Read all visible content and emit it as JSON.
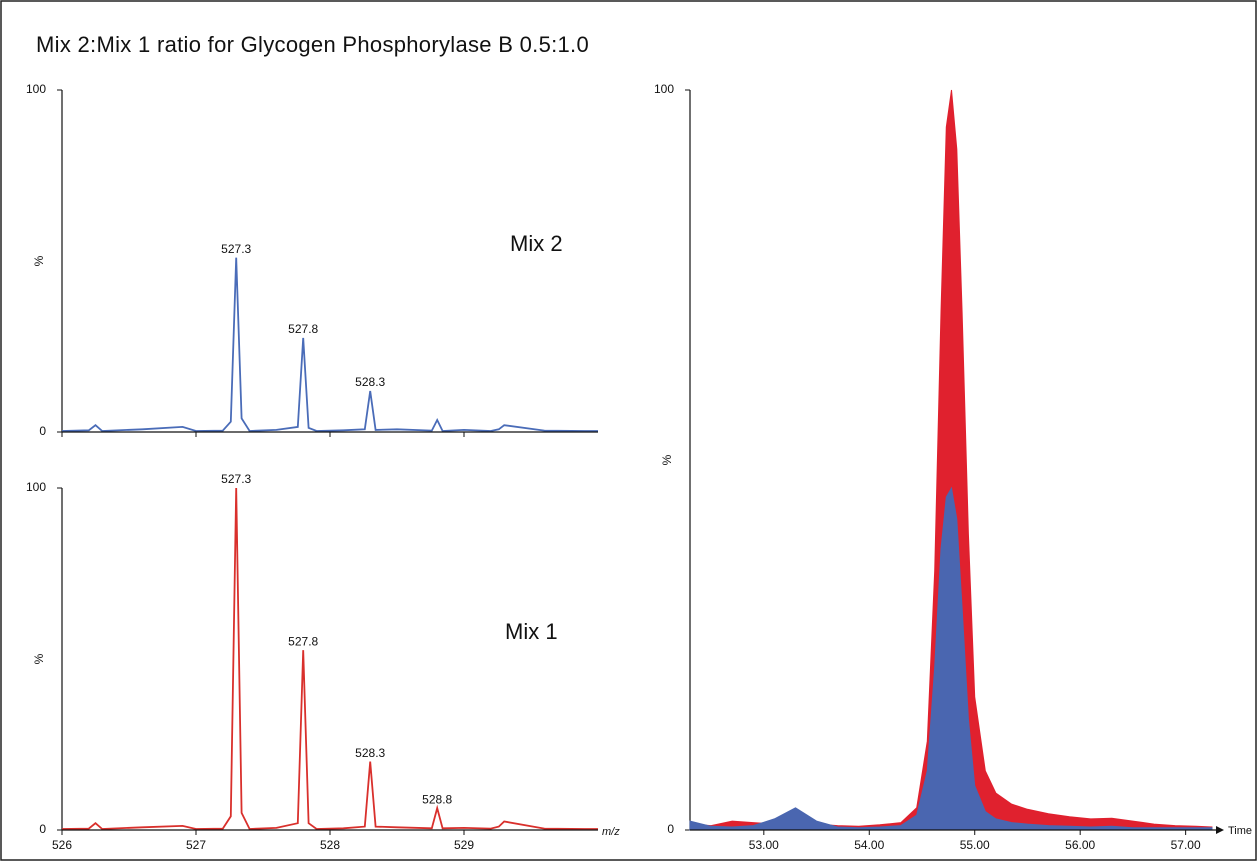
{
  "title": "Mix 2:Mix 1 ratio for Glycogen Phosphorylase B 0.5:1.0",
  "chart_data": [
    {
      "type": "line",
      "ylabel": "%",
      "label_color": "#3a8db5",
      "xlim": [
        526,
        530
      ],
      "xticks": [
        526,
        527,
        528,
        529
      ],
      "xtick_labels": false,
      "ylim": [
        0,
        100
      ],
      "yticks": [
        0,
        100
      ],
      "x": [
        526.0,
        526.2,
        526.25,
        526.3,
        526.6,
        526.9,
        527.0,
        527.2,
        527.26,
        527.3,
        527.34,
        527.4,
        527.6,
        527.76,
        527.8,
        527.84,
        527.9,
        528.1,
        528.26,
        528.3,
        528.34,
        528.5,
        528.76,
        528.8,
        528.84,
        529.0,
        529.2,
        529.26,
        529.3,
        529.6,
        529.9,
        530.0
      ],
      "series": [
        {
          "name": "Mix 2",
          "color": "#4a6cb8",
          "values": [
            0.3,
            0.5,
            2,
            0.3,
            0.8,
            1.5,
            0.3,
            0.4,
            3,
            51,
            4,
            0.3,
            0.6,
            1.5,
            27.5,
            1.2,
            0.3,
            0.5,
            0.8,
            12,
            0.6,
            0.8,
            0.4,
            3.5,
            0.3,
            0.6,
            0.3,
            0.8,
            2,
            0.4,
            0.3,
            0.3
          ]
        }
      ],
      "annotations": [
        {
          "text": "527.3",
          "x": 527.3,
          "y": 51
        },
        {
          "text": "527.8",
          "x": 527.8,
          "y": 27.5
        },
        {
          "text": "528.3",
          "x": 528.3,
          "y": 12
        }
      ]
    },
    {
      "type": "line",
      "ylabel": "%",
      "xlabel": "m/z",
      "label_color": "#d9302c",
      "xlim": [
        526,
        530
      ],
      "xticks": [
        526,
        527,
        528,
        529
      ],
      "xtick_labels": true,
      "ylim": [
        0,
        100
      ],
      "yticks": [
        0,
        100
      ],
      "x": [
        526.0,
        526.2,
        526.25,
        526.3,
        526.6,
        526.9,
        527.0,
        527.2,
        527.26,
        527.3,
        527.34,
        527.4,
        527.6,
        527.76,
        527.8,
        527.84,
        527.9,
        528.1,
        528.26,
        528.3,
        528.34,
        528.5,
        528.76,
        528.8,
        528.84,
        529.0,
        529.2,
        529.26,
        529.3,
        529.6,
        529.9,
        530.0
      ],
      "series": [
        {
          "name": "Mix 1",
          "color": "#d9302c",
          "values": [
            0.3,
            0.4,
            2,
            0.3,
            0.8,
            1.2,
            0.3,
            0.4,
            4,
            100,
            5,
            0.3,
            0.6,
            2,
            52.6,
            2,
            0.3,
            0.5,
            1,
            20,
            1,
            0.8,
            0.5,
            6.4,
            0.5,
            0.6,
            0.4,
            1,
            2.5,
            0.4,
            0.3,
            0.3
          ]
        }
      ],
      "annotations": [
        {
          "text": "527.3",
          "x": 527.3,
          "y": 100
        },
        {
          "text": "527.8",
          "x": 527.8,
          "y": 52.6
        },
        {
          "text": "528.3",
          "x": 528.3,
          "y": 20
        },
        {
          "text": "528.8",
          "x": 528.8,
          "y": 6.4
        }
      ]
    },
    {
      "type": "area",
      "ylabel": "%",
      "xlabel": "Time",
      "xlim": [
        52.3,
        57.25
      ],
      "xticks": [
        {
          "value": 53,
          "label": "53.00"
        },
        {
          "value": 54,
          "label": "54.00"
        },
        {
          "value": 55,
          "label": "55.00"
        },
        {
          "value": 56,
          "label": "56.00"
        },
        {
          "value": 57,
          "label": "57.00"
        }
      ],
      "xtick_labels": true,
      "ylim": [
        0,
        100
      ],
      "yticks": [
        0,
        100
      ],
      "x": [
        52.3,
        52.5,
        52.7,
        52.9,
        53.1,
        53.3,
        53.5,
        53.7,
        53.9,
        54.1,
        54.3,
        54.45,
        54.55,
        54.62,
        54.68,
        54.73,
        54.78,
        54.83,
        54.88,
        54.94,
        55.0,
        55.1,
        55.2,
        55.35,
        55.5,
        55.7,
        55.9,
        56.1,
        56.3,
        56.5,
        56.7,
        56.9,
        57.1,
        57.25
      ],
      "series": [
        {
          "color": "#e0212e",
          "values": [
            0.8,
            0.6,
            1.2,
            1,
            0.8,
            0.5,
            0.8,
            0.6,
            0.5,
            0.7,
            1,
            3,
            12,
            35,
            70,
            95,
            100,
            92,
            70,
            40,
            18,
            8,
            5,
            3.5,
            2.8,
            2.2,
            1.8,
            1.5,
            1.6,
            1.2,
            0.8,
            0.6,
            0.5,
            0.4
          ]
        },
        {
          "color": "#4a66b0",
          "values": [
            1.2,
            0.5,
            0.4,
            0.6,
            1.5,
            3,
            1.2,
            0.4,
            0.3,
            0.4,
            0.6,
            2,
            8,
            22,
            38,
            45,
            46.2,
            42,
            30,
            15,
            6,
            2.5,
            1.5,
            1,
            0.8,
            0.6,
            0.5,
            0.4,
            0.5,
            0.3,
            0.3,
            0.3,
            0.3,
            0.3
          ]
        }
      ]
    }
  ]
}
